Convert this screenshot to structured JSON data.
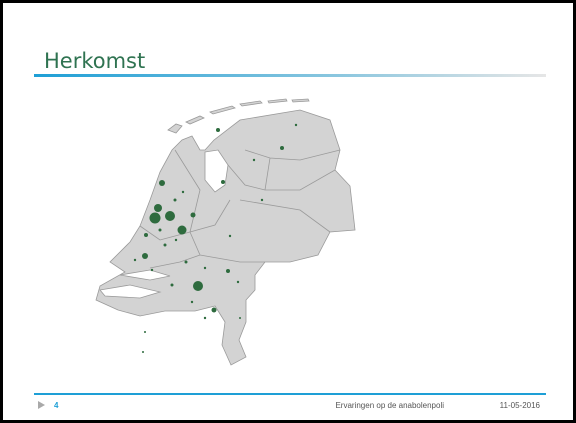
{
  "slide": {
    "title": "Herkomst",
    "footer": {
      "page": "4",
      "text": "Ervaringen op de anabolenpoli",
      "date": "11-05-2016"
    }
  }
}
